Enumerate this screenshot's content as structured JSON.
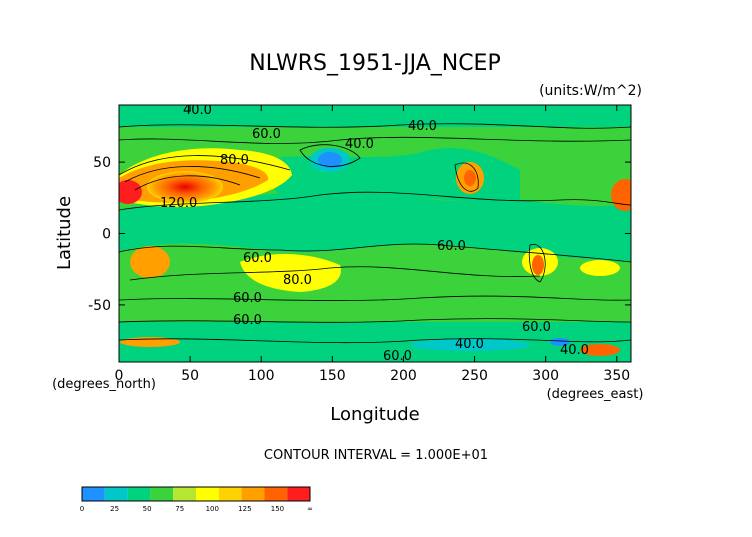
{
  "chart_data": {
    "type": "heatmap",
    "title": "NLWRS_1951-JJA_NCEP",
    "units": "(units:W/m^2)",
    "xlabel": "Longitude",
    "ylabel": "Latitude",
    "x_note": "(degrees_east)",
    "y_note": "(degrees_north)",
    "xlim": [
      0,
      360
    ],
    "ylim": [
      -90,
      90
    ],
    "xticks": [
      0,
      50,
      100,
      150,
      200,
      250,
      300,
      350
    ],
    "yticks": [
      50,
      0,
      -50
    ],
    "contour_interval_label": "CONTOUR INTERVAL = 1.000E+01",
    "contour_labels": [
      "40.0",
      "60.0",
      "40.0",
      "40.0",
      "80.0",
      "120.0",
      "60.0",
      "60.0",
      "80.0",
      "60.0",
      "60.0",
      "60.0",
      "40.0",
      "60.0",
      "40.0"
    ],
    "colorbar": {
      "tick_labels": [
        "0",
        "25",
        "50",
        "75",
        "100",
        "125",
        "150",
        "∞"
      ],
      "colors": [
        "#1e90ff",
        "#00c8c8",
        "#00d27d",
        "#3cd23c",
        "#b4e632",
        "#ffff00",
        "#ffd200",
        "#ff9f00",
        "#ff6400",
        "#ff1e1e"
      ]
    },
    "grid": false
  }
}
